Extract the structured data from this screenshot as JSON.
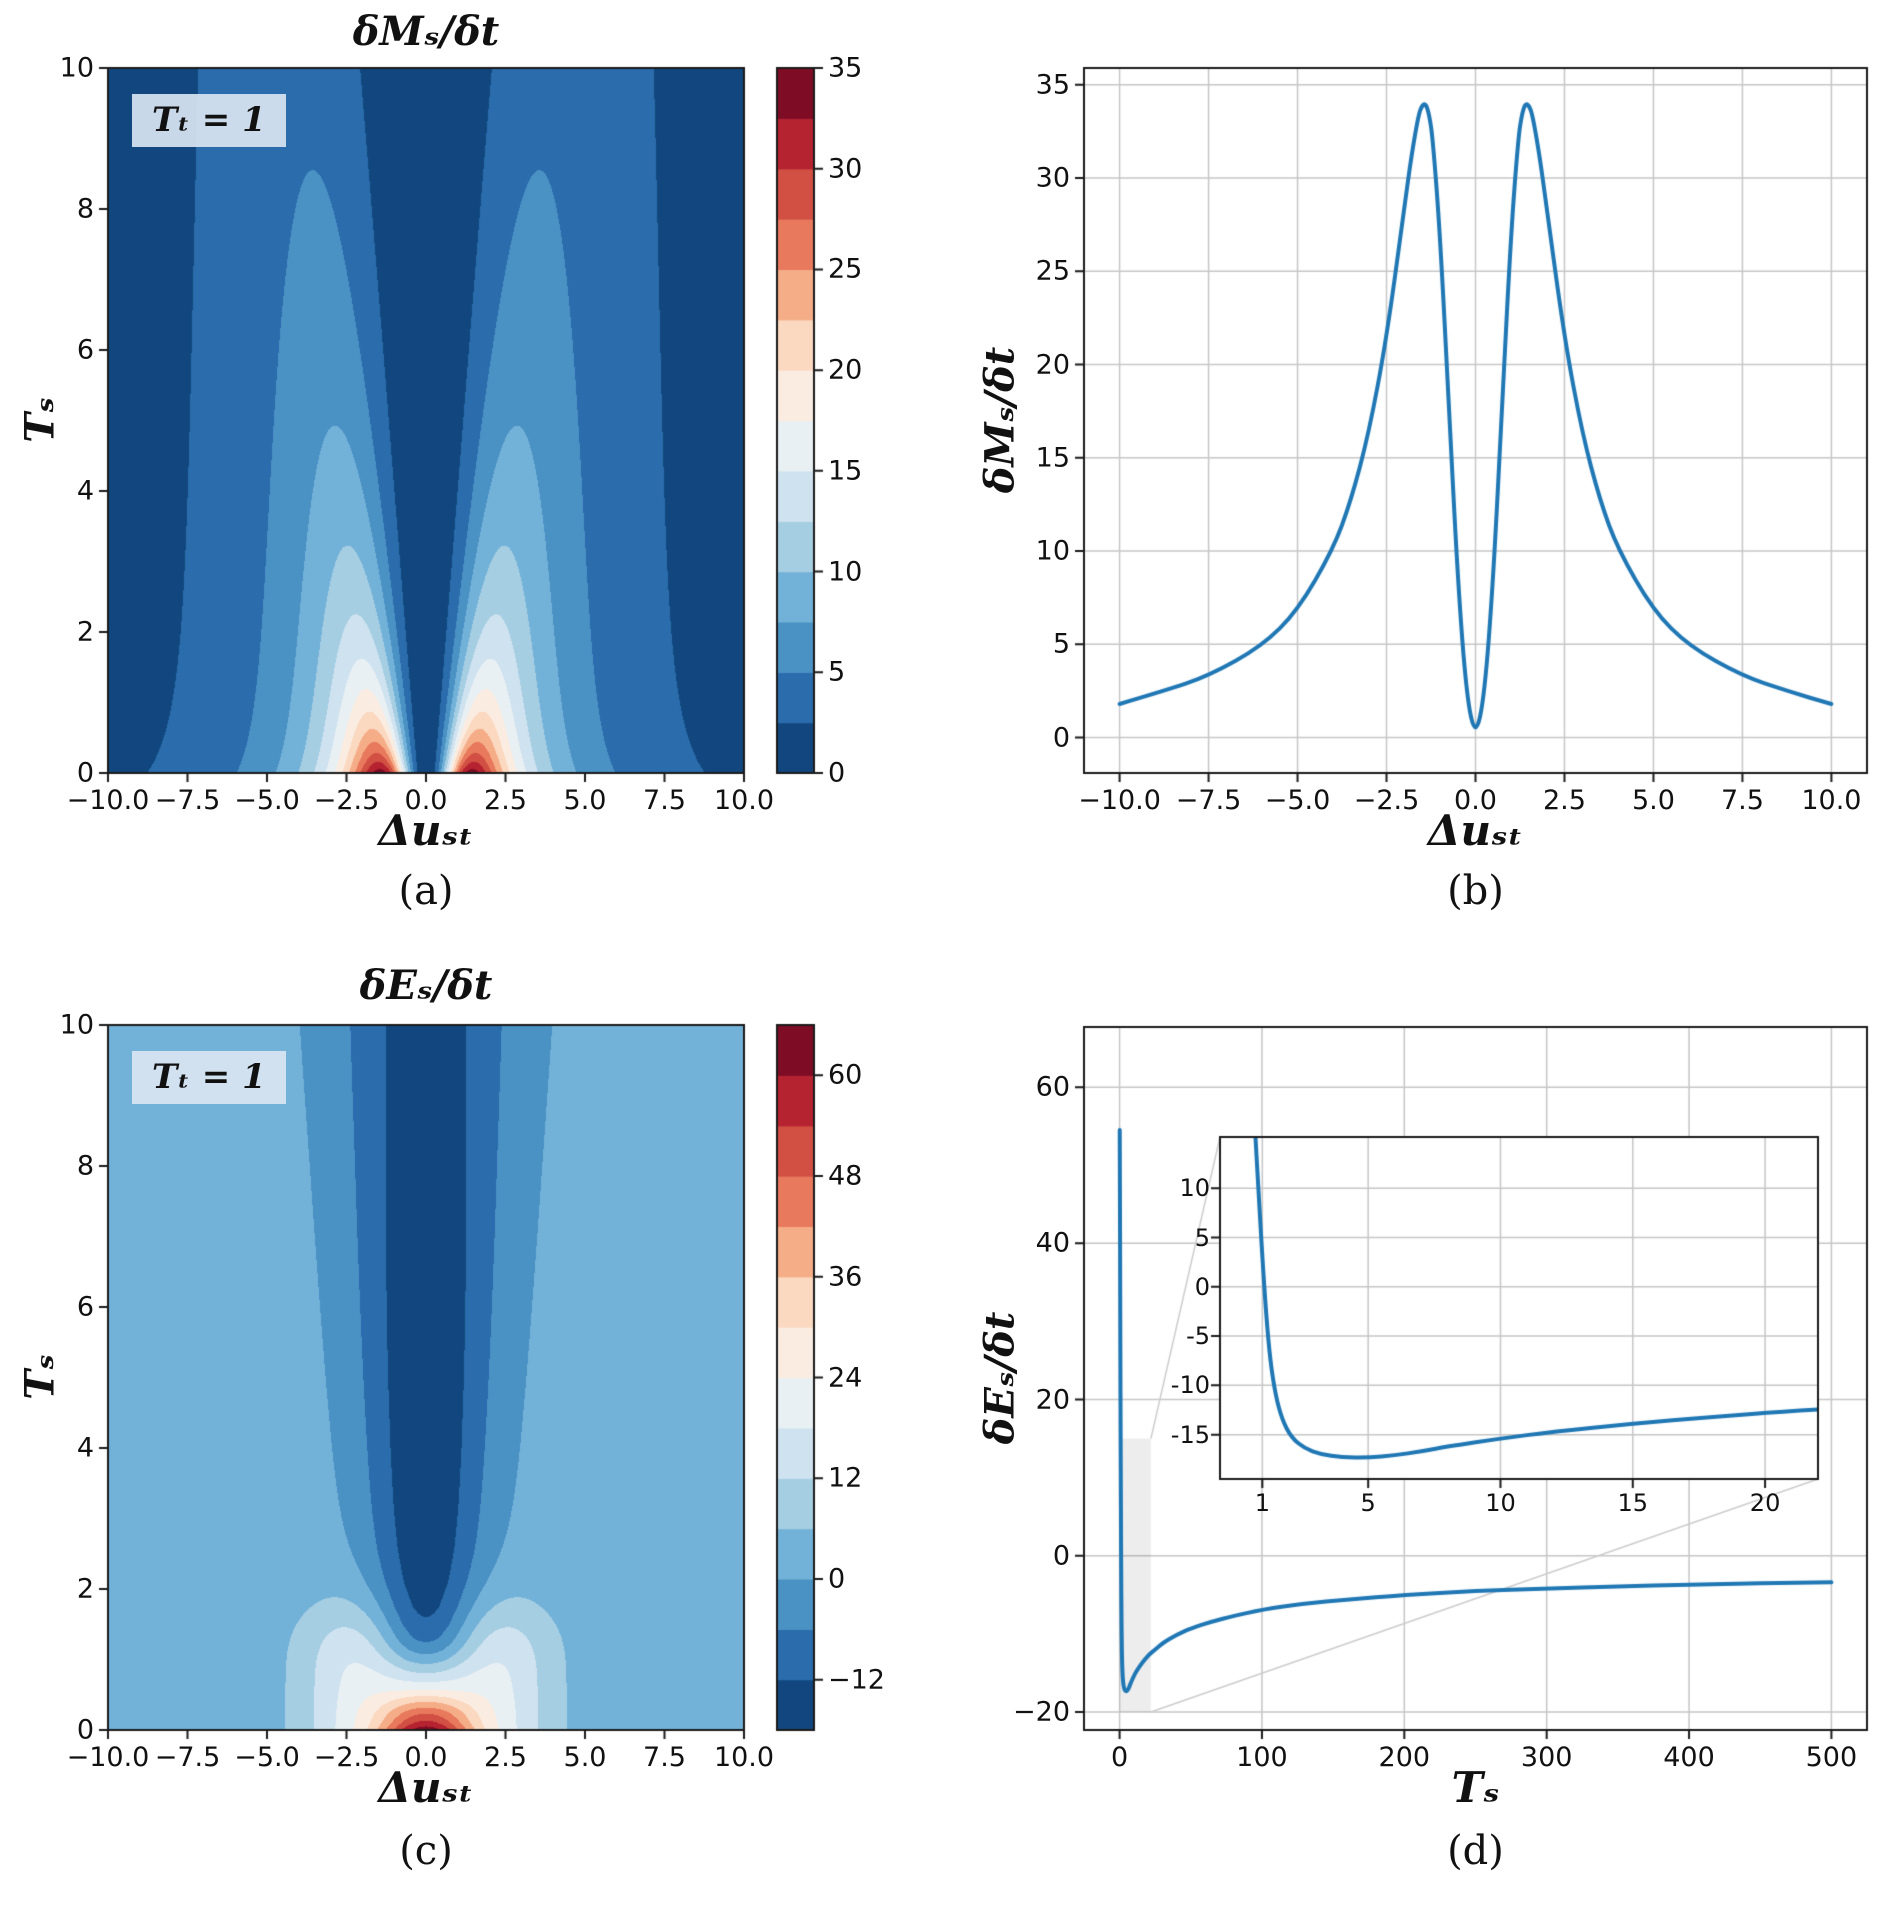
{
  "figure": {
    "background": "#ffffff",
    "line_color": "#1f77b4",
    "grid_color": "#c6c6c6",
    "axis_color": "#1a1a1a",
    "annotation_bg": "rgba(217,229,241,0.92)",
    "zoom_rect_color": "rgba(0,0,0,0.07)",
    "connector_color": "#cccccc",
    "colormap": [
      "#11477e",
      "#2b6cac",
      "#4a91c4",
      "#73b2d8",
      "#a6cee3",
      "#cfe2ef",
      "#e8f0f3",
      "#fbece1",
      "#fbd8c0",
      "#f5ad88",
      "#e8795c",
      "#d14f43",
      "#b52230",
      "#7f0c25"
    ],
    "captions": {
      "a": "(a)",
      "b": "(b)",
      "c": "(c)",
      "d": "(d)"
    }
  },
  "chart_data": [
    {
      "id": "a",
      "type": "contour",
      "title": "δMₛ/δt",
      "annotation": "Tₜ = 1",
      "xlabel": "Δuₛₜ",
      "ylabel": "Tₛ",
      "xlim": [
        -10,
        10
      ],
      "ylim": [
        0,
        10
      ],
      "x_tick_values": [
        -10,
        -7.5,
        -5,
        -2.5,
        0,
        2.5,
        5,
        7.5,
        10
      ],
      "x_tick_labels": [
        "−10.0",
        "−7.5",
        "−5.0",
        "−2.5",
        "0.0",
        "2.5",
        "5.0",
        "7.5",
        "10.0"
      ],
      "y_tick_values": [
        0,
        2,
        4,
        6,
        8,
        10
      ],
      "y_tick_labels": [
        "0",
        "2",
        "4",
        "6",
        "8",
        "10"
      ],
      "levels_min": 0,
      "levels_step": 2.5,
      "levels_count": 14,
      "colorbar_tick_values": [
        0,
        5,
        10,
        15,
        20,
        25,
        30,
        35
      ],
      "colorbar_tick_labels": [
        "0",
        "5",
        "10",
        "15",
        "20",
        "25",
        "30",
        "35"
      ],
      "field_model": {
        "kind": "ridge",
        "peak_value": 34,
        "peak_decay_exp": 0.85,
        "peak_x": 1.4,
        "width_growth": 0.6,
        "shape_power": 3.8
      }
    },
    {
      "id": "b",
      "type": "line",
      "xlabel": "Δuₛₜ",
      "ylabel": "δMₛ/δt",
      "xlim": [
        -11,
        11
      ],
      "ylim": [
        -1.9,
        35.9
      ],
      "grid": true,
      "x_tick_values": [
        -10,
        -7.5,
        -5,
        -2.5,
        0,
        2.5,
        5,
        7.5,
        10
      ],
      "x_tick_labels": [
        "−10.0",
        "−7.5",
        "−5.0",
        "−2.5",
        "0.0",
        "2.5",
        "5.0",
        "7.5",
        "10.0"
      ],
      "y_tick_values": [
        0,
        5,
        10,
        15,
        20,
        25,
        30,
        35
      ],
      "y_tick_labels": [
        "0",
        "5",
        "10",
        "15",
        "20",
        "25",
        "30",
        "35"
      ],
      "x": [
        -10,
        -8.75,
        -7.5,
        -6,
        -5,
        -4,
        -3.5,
        -3,
        -2.5,
        -2,
        -1.8,
        -1.6,
        -1.5,
        -1.4,
        -1.3,
        -1.2,
        -1,
        -0.75,
        -0.5,
        -0.25,
        0,
        0.25,
        0.5,
        0.75,
        1,
        1.2,
        1.3,
        1.4,
        1.5,
        1.6,
        1.8,
        2,
        2.5,
        3,
        3.5,
        4,
        5,
        6,
        7.5,
        8.75,
        10
      ],
      "y": [
        1.8,
        2.5,
        3.3,
        4.9,
        6.8,
        10.1,
        12.7,
        16.3,
        21.4,
        28.4,
        31.2,
        33.4,
        33.9,
        34,
        33.4,
        32.1,
        27.1,
        17.9,
        8.5,
        2.2,
        0,
        2.2,
        8.5,
        17.9,
        27.1,
        32.1,
        33.4,
        34,
        33.9,
        33.4,
        31.2,
        28.4,
        21.4,
        16.3,
        12.7,
        10.1,
        6.8,
        4.9,
        3.3,
        2.5,
        1.8
      ]
    },
    {
      "id": "c",
      "type": "contour",
      "title": "δEₛ/δt",
      "annotation": "Tₜ = 1",
      "xlabel": "Δuₛₜ",
      "ylabel": "Tₛ",
      "xlim": [
        -10,
        10
      ],
      "ylim": [
        0,
        10
      ],
      "x_tick_values": [
        -10,
        -7.5,
        -5,
        -2.5,
        0,
        2.5,
        5,
        7.5,
        10
      ],
      "x_tick_labels": [
        "−10.0",
        "−7.5",
        "−5.0",
        "−2.5",
        "0.0",
        "2.5",
        "5.0",
        "7.5",
        "10.0"
      ],
      "y_tick_values": [
        0,
        2,
        4,
        6,
        8,
        10
      ],
      "y_tick_labels": [
        "0",
        "2",
        "4",
        "6",
        "8",
        "10"
      ],
      "levels_min": -18,
      "levels_step": 6,
      "levels_count": 14,
      "colorbar_tick_values": [
        -12,
        0,
        12,
        24,
        36,
        48,
        60
      ],
      "colorbar_tick_labels": [
        "−12",
        "0",
        "12",
        "24",
        "36",
        "48",
        "60"
      ],
      "field_model": {
        "kind": "well",
        "base": 2,
        "core_sigma0": 1.5,
        "core_sigma_growth": 0.12,
        "wing_amp": 16,
        "wing_x": 2.3,
        "wing_tau": 1.7,
        "wing_power": 6,
        "center_profile_T": [
          0,
          0.1,
          0.25,
          0.4,
          0.55,
          0.7,
          0.85,
          1.0,
          1.15,
          1.3,
          1.5,
          1.75,
          2.1,
          2.6,
          3.2,
          4,
          5,
          6,
          7,
          8,
          10
        ],
        "center_profile_value": [
          64,
          56,
          47,
          36,
          25,
          17,
          10,
          3,
          -3,
          -7.5,
          -11,
          -13.5,
          -15.3,
          -16.4,
          -17,
          -17.3,
          -17.35,
          -17.1,
          -16.7,
          -16.2,
          -15.4
        ]
      }
    },
    {
      "id": "d",
      "type": "line",
      "xlabel": "Tₛ",
      "ylabel": "δEₛ/δt",
      "xlim": [
        -25,
        525
      ],
      "ylim": [
        -22.3,
        67.7
      ],
      "grid": true,
      "x_tick_values": [
        0,
        100,
        200,
        300,
        400,
        500
      ],
      "x_tick_labels": [
        "0",
        "100",
        "200",
        "300",
        "400",
        "500"
      ],
      "y_tick_values": [
        -20,
        0,
        20,
        40,
        60
      ],
      "y_tick_labels": [
        "−20",
        "0",
        "20",
        "40",
        "60"
      ],
      "x": [
        0.1,
        0.25,
        0.4,
        0.55,
        0.7,
        0.85,
        1.0,
        1.15,
        1.3,
        1.5,
        1.75,
        2.1,
        2.6,
        3.2,
        4,
        5,
        6,
        7,
        8,
        10,
        12,
        15,
        18,
        21,
        25,
        30,
        40,
        50,
        65,
        80,
        100,
        130,
        160,
        200,
        250,
        300,
        350,
        400,
        450,
        500
      ],
      "y": [
        54.5,
        47,
        36,
        25,
        17,
        10,
        3,
        -3,
        -7.5,
        -11,
        -13.5,
        -15.3,
        -16.4,
        -17,
        -17.3,
        -17.35,
        -17.1,
        -16.7,
        -16.2,
        -15.4,
        -14.7,
        -13.9,
        -13.2,
        -12.6,
        -12,
        -11.2,
        -10.1,
        -9.3,
        -8.4,
        -7.7,
        -6.9,
        -6.1,
        -5.6,
        -5.0,
        -4.5,
        -4.2,
        -3.9,
        -3.7,
        -3.5,
        -3.4
      ],
      "inset": {
        "xlim": [
          -0.6,
          22.0
        ],
        "ylim": [
          -19.5,
          15.2
        ],
        "x_tick_values": [
          1,
          5,
          10,
          15,
          20
        ],
        "x_tick_labels": [
          "1",
          "5",
          "10",
          "15",
          "20"
        ],
        "y_tick_values": [
          10,
          5,
          0,
          -5,
          -10,
          -15
        ],
        "y_tick_labels": [
          "10",
          "5",
          "0",
          "-5",
          "-10",
          "-15"
        ],
        "zoom_rect": {
          "x0": 0,
          "x1": 22,
          "y0": -20,
          "y1": 15
        }
      }
    }
  ]
}
